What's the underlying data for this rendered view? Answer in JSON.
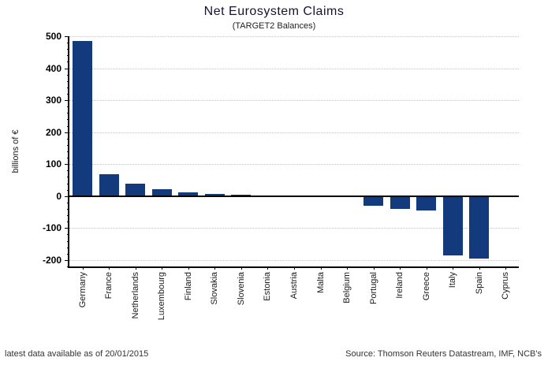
{
  "header": {
    "title": "Net Eurosystem Claims",
    "subtitle": "(TARGET2 Balances)"
  },
  "footer": {
    "left": "latest data available as of 20/01/2015",
    "right": "Source: Thomson Reuters Datastream, IMF, NCB's"
  },
  "chart_data": {
    "type": "bar",
    "title": "Net Eurosystem Claims",
    "subtitle": "(TARGET2 Balances)",
    "xlabel": "",
    "ylabel": "billions of €",
    "categories": [
      "Germany",
      "France",
      "Netherlands",
      "Luxembourg",
      "Finland",
      "Slovakia",
      "Slovenia",
      "Estonia",
      "Austria",
      "Malta",
      "Belgium",
      "Portugal",
      "Ireland",
      "Greece",
      "Italy",
      "Spain",
      "Cyprus"
    ],
    "values": [
      485,
      68,
      39,
      22,
      12,
      6,
      4,
      2,
      1,
      1,
      -1,
      -30,
      -41,
      -46,
      -185,
      -196,
      0
    ],
    "ylim": [
      -220,
      500
    ],
    "yticks": [
      500,
      400,
      300,
      200,
      100,
      0,
      -100,
      -200
    ],
    "minor_tick_step": 20,
    "grid": "horizontal dotted at major ticks",
    "legend": "none",
    "bar_color": "#123a7d",
    "zero_line_color": "#000000",
    "gridline_color": "#c2c2c2"
  }
}
